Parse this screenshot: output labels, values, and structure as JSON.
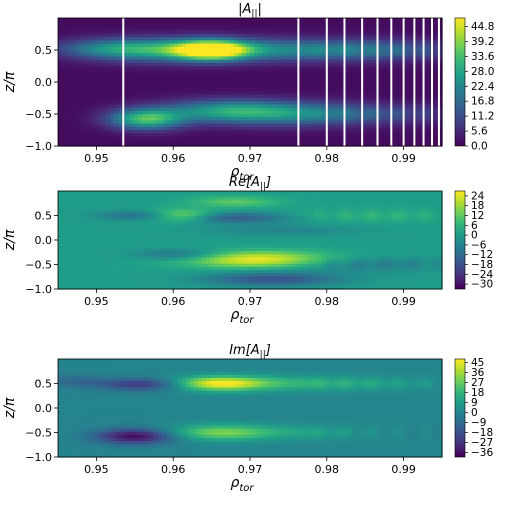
{
  "chart_data": [
    {
      "type": "heatmap",
      "title": "|A_|| |",
      "title_main": "|A",
      "title_sub": "||",
      "title_end": "|",
      "xlabel_main": "ρ",
      "xlabel_sub": "tor",
      "ylabel": "z/π",
      "xlim": [
        0.945,
        0.995
      ],
      "ylim": [
        -1.0,
        1.0
      ],
      "xticks": [
        "0.95",
        "0.96",
        "0.97",
        "0.98",
        "0.99"
      ],
      "yticks": [
        "0.5",
        "0.0",
        "−0.5",
        "−1.0"
      ],
      "colorbar_ticks": [
        "44.8",
        "39.2",
        "33.6",
        "28.0",
        "22.4",
        "16.8",
        "11.2",
        "5.6",
        "0.0"
      ],
      "colorbar_range": [
        0.0,
        48.0
      ],
      "blobs": [
        {
          "x": 0.965,
          "y": 0.5,
          "sx": 0.0032,
          "sy": 0.1,
          "amp": 46
        },
        {
          "x": 0.959,
          "y": 0.5,
          "sx": 0.007,
          "sy": 0.13,
          "amp": 20
        },
        {
          "x": 0.974,
          "y": 0.5,
          "sx": 0.01,
          "sy": 0.12,
          "amp": 17
        },
        {
          "x": 0.952,
          "y": 0.52,
          "sx": 0.005,
          "sy": 0.1,
          "amp": 14
        },
        {
          "x": 0.9565,
          "y": -0.58,
          "sx": 0.0033,
          "sy": 0.11,
          "amp": 32
        },
        {
          "x": 0.967,
          "y": -0.45,
          "sx": 0.006,
          "sy": 0.12,
          "amp": 22
        },
        {
          "x": 0.975,
          "y": -0.5,
          "sx": 0.007,
          "sy": 0.13,
          "amp": 15
        },
        {
          "x": 0.986,
          "y": -0.5,
          "sx": 0.008,
          "sy": 0.11,
          "amp": 9
        },
        {
          "x": 0.987,
          "y": 0.5,
          "sx": 0.008,
          "sy": 0.11,
          "amp": 10
        }
      ],
      "vlines": [
        0.9535,
        0.9763,
        0.98,
        0.9823,
        0.9846,
        0.9866,
        0.9884,
        0.99,
        0.9914,
        0.9926,
        0.9937,
        0.9946
      ]
    },
    {
      "type": "heatmap",
      "title_main": "Re[A",
      "title_sub": "||",
      "title_end": "]",
      "xlabel_main": "ρ",
      "xlabel_sub": "tor",
      "ylabel": "z/π",
      "xlim": [
        0.945,
        0.995
      ],
      "ylim": [
        -1.0,
        1.0
      ],
      "xticks": [
        "0.95",
        "0.96",
        "0.97",
        "0.98",
        "0.99"
      ],
      "yticks": [
        "0.5",
        "0.0",
        "−0.5",
        "−1.0"
      ],
      "colorbar_ticks": [
        "24",
        "18",
        "12",
        "6",
        "0",
        "−6",
        "−12",
        "−18",
        "−24",
        "−30"
      ],
      "colorbar_range": [
        -33.0,
        27.0
      ],
      "blobs": [
        {
          "x": 0.971,
          "y": -0.4,
          "sx": 0.0065,
          "sy": 0.12,
          "amp": 27
        },
        {
          "x": 0.961,
          "y": 0.5,
          "sx": 0.003,
          "sy": 0.09,
          "amp": 20
        },
        {
          "x": 0.956,
          "y": 0.5,
          "sx": 0.004,
          "sy": 0.07,
          "amp": -12
        },
        {
          "x": 0.968,
          "y": 0.45,
          "sx": 0.005,
          "sy": 0.08,
          "amp": -16
        },
        {
          "x": 0.968,
          "y": 0.78,
          "sx": 0.004,
          "sy": 0.08,
          "amp": 12
        },
        {
          "x": 0.961,
          "y": -0.3,
          "sx": 0.004,
          "sy": 0.08,
          "amp": -12
        },
        {
          "x": 0.973,
          "y": -0.8,
          "sx": 0.006,
          "sy": 0.1,
          "amp": -18
        },
        {
          "x": 0.974,
          "y": 0.2,
          "sx": 0.007,
          "sy": 0.08,
          "amp": -6
        },
        {
          "x": 0.984,
          "y": -0.5,
          "sx": 0.008,
          "sy": 0.11,
          "amp": -8
        },
        {
          "x": 0.986,
          "y": 0.5,
          "sx": 0.008,
          "sy": 0.1,
          "amp": 5
        }
      ]
    },
    {
      "type": "heatmap",
      "title_main": "Im[A",
      "title_sub": "||",
      "title_end": "]",
      "xlabel_main": "ρ",
      "xlabel_sub": "tor",
      "ylabel": "z/π",
      "xlim": [
        0.945,
        0.995
      ],
      "ylim": [
        -1.0,
        1.0
      ],
      "xticks": [
        "0.95",
        "0.96",
        "0.97",
        "0.98",
        "0.99"
      ],
      "yticks": [
        "0.5",
        "0.0",
        "−0.5",
        "−1.0"
      ],
      "colorbar_ticks": [
        "45",
        "36",
        "27",
        "18",
        "9",
        "0",
        "−9",
        "−18",
        "−27",
        "−36"
      ],
      "colorbar_range": [
        -40.0,
        48.0
      ],
      "blobs": [
        {
          "x": 0.966,
          "y": 0.5,
          "sx": 0.004,
          "sy": 0.1,
          "amp": 44
        },
        {
          "x": 0.956,
          "y": 0.48,
          "sx": 0.004,
          "sy": 0.09,
          "amp": -26
        },
        {
          "x": 0.955,
          "y": -0.58,
          "sx": 0.0035,
          "sy": 0.11,
          "amp": -38
        },
        {
          "x": 0.966,
          "y": -0.5,
          "sx": 0.0045,
          "sy": 0.11,
          "amp": 27
        },
        {
          "x": 0.975,
          "y": 0.5,
          "sx": 0.008,
          "sy": 0.11,
          "amp": 14
        },
        {
          "x": 0.976,
          "y": -0.5,
          "sx": 0.007,
          "sy": 0.11,
          "amp": 10
        },
        {
          "x": 0.986,
          "y": 0.5,
          "sx": 0.008,
          "sy": 0.1,
          "amp": 6
        },
        {
          "x": 0.947,
          "y": 0.55,
          "sx": 0.003,
          "sy": 0.09,
          "amp": -10
        }
      ]
    }
  ],
  "colormap": [
    "#440154",
    "#482878",
    "#3e4989",
    "#31688e",
    "#26828e",
    "#1f9e89",
    "#35b779",
    "#6ece58",
    "#b5de2b",
    "#fde725"
  ]
}
